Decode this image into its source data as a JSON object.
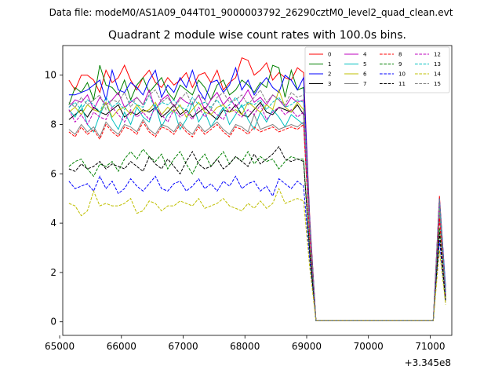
{
  "figure": {
    "suptitle": "Data file: modeM0/AS1A09_044T01_9000003792_26290cztM0_level2_quad_clean.evt"
  },
  "chart_data": {
    "type": "line",
    "title": "Quadrant 2 module wise count rates with 100.0s bins.",
    "xlabel": "",
    "ylabel": "",
    "x_offset_label": "+3.345e8",
    "xlim": [
      65050,
      71350
    ],
    "ylim": [
      -0.55,
      11.2
    ],
    "xticks": [
      65000,
      66000,
      67000,
      68000,
      69000,
      70000,
      71000
    ],
    "yticks": [
      0,
      2,
      4,
      6,
      8,
      10
    ],
    "x_start": 65150,
    "x_step": 100,
    "legend": {
      "placement": "top-right",
      "ncol": 4
    },
    "series": [
      {
        "name": "0",
        "color": "#ff0000",
        "dash": "solid",
        "values": [
          9.8,
          9.4,
          10.0,
          10.0,
          9.8,
          9.3,
          10.2,
          9.7,
          9.9,
          10.4,
          9.8,
          9.4,
          9.9,
          10.2,
          9.7,
          9.5,
          9.9,
          9.6,
          9.8,
          10.1,
          9.5,
          10.0,
          10.1,
          9.7,
          10.2,
          9.4,
          9.7,
          9.9,
          10.7,
          10.6,
          10.0,
          10.2,
          10.5,
          9.8,
          10.1,
          9.9,
          9.8,
          10.3,
          10.1,
          4.2,
          0.05,
          0.05,
          0.05,
          0.05,
          0.05,
          0.05,
          0.05,
          0.05,
          0.05,
          0.05,
          0.05,
          0.05,
          0.05,
          0.05,
          0.05,
          0.05,
          0.05,
          0.05,
          0.05,
          0.05,
          5.1,
          1.3
        ]
      },
      {
        "name": "1",
        "color": "#008000",
        "dash": "solid",
        "values": [
          8.8,
          9.5,
          9.3,
          9.7,
          9.0,
          10.4,
          9.6,
          9.5,
          9.2,
          9.8,
          9.0,
          9.6,
          9.9,
          9.3,
          9.6,
          9.9,
          9.3,
          9.0,
          9.6,
          9.4,
          9.2,
          9.8,
          9.5,
          9.0,
          9.6,
          9.8,
          9.2,
          9.4,
          9.8,
          9.6,
          9.3,
          9.7,
          9.5,
          10.4,
          10.3,
          9.1,
          10.2,
          9.4,
          9.5,
          4.0,
          0.05,
          0.05,
          0.05,
          0.05,
          0.05,
          0.05,
          0.05,
          0.05,
          0.05,
          0.05,
          0.05,
          0.05,
          0.05,
          0.05,
          0.05,
          0.05,
          0.05,
          0.05,
          0.05,
          0.05,
          4.8,
          1.2
        ]
      },
      {
        "name": "2",
        "color": "#0000ff",
        "dash": "solid",
        "values": [
          9.2,
          9.2,
          9.3,
          9.4,
          9.6,
          9.8,
          9.0,
          10.2,
          9.4,
          9.3,
          9.7,
          9.5,
          9.2,
          9.8,
          10.2,
          9.1,
          9.6,
          9.3,
          9.9,
          9.5,
          10.2,
          9.4,
          9.0,
          9.7,
          9.8,
          9.3,
          9.6,
          10.3,
          9.4,
          9.8,
          9.2,
          9.6,
          9.9,
          9.5,
          9.3,
          10.0,
          9.8,
          9.4,
          9.9,
          4.1,
          0.05,
          0.05,
          0.05,
          0.05,
          0.05,
          0.05,
          0.05,
          0.05,
          0.05,
          0.05,
          0.05,
          0.05,
          0.05,
          0.05,
          0.05,
          0.05,
          0.05,
          0.05,
          0.05,
          0.05,
          5.0,
          1.4
        ]
      },
      {
        "name": "3",
        "color": "#000000",
        "dash": "solid",
        "values": [
          8.2,
          8.4,
          8.6,
          8.3,
          8.7,
          8.5,
          8.4,
          8.6,
          8.8,
          8.3,
          8.5,
          8.4,
          8.6,
          8.5,
          8.7,
          8.3,
          8.5,
          8.8,
          8.4,
          8.6,
          8.3,
          8.5,
          8.7,
          8.4,
          8.2,
          8.6,
          8.5,
          8.8,
          8.4,
          8.3,
          8.6,
          8.9,
          8.5,
          8.4,
          8.7,
          8.6,
          8.5,
          8.8,
          8.4,
          3.6,
          0.05,
          0.05,
          0.05,
          0.05,
          0.05,
          0.05,
          0.05,
          0.05,
          0.05,
          0.05,
          0.05,
          0.05,
          0.05,
          0.05,
          0.05,
          0.05,
          0.05,
          0.05,
          0.05,
          0.05,
          4.5,
          1.1
        ]
      },
      {
        "name": "4",
        "color": "#bf00bf",
        "dash": "solid",
        "values": [
          8.7,
          9.0,
          8.9,
          9.2,
          8.6,
          9.1,
          8.8,
          9.0,
          9.3,
          8.7,
          8.9,
          9.1,
          8.8,
          9.4,
          8.6,
          9.0,
          9.2,
          8.7,
          9.1,
          8.9,
          8.8,
          9.2,
          8.6,
          9.0,
          9.3,
          8.8,
          9.1,
          8.7,
          9.0,
          9.4,
          8.9,
          9.1,
          8.8,
          9.2,
          9.0,
          8.7,
          9.1,
          8.9,
          9.0,
          3.9,
          0.05,
          0.05,
          0.05,
          0.05,
          0.05,
          0.05,
          0.05,
          0.05,
          0.05,
          0.05,
          0.05,
          0.05,
          0.05,
          0.05,
          0.05,
          0.05,
          0.05,
          0.05,
          0.05,
          0.05,
          4.7,
          1.2
        ]
      },
      {
        "name": "5",
        "color": "#00bfbf",
        "dash": "solid",
        "values": [
          8.6,
          8.3,
          8.8,
          8.0,
          7.7,
          8.4,
          8.9,
          8.2,
          7.8,
          8.5,
          8.0,
          8.7,
          8.3,
          8.1,
          8.8,
          7.9,
          8.4,
          8.6,
          7.8,
          8.2,
          8.9,
          8.1,
          8.5,
          7.9,
          8.3,
          8.7,
          8.0,
          8.4,
          8.8,
          8.2,
          7.8,
          8.5,
          8.1,
          8.6,
          8.3,
          7.9,
          8.4,
          8.2,
          8.0,
          3.7,
          0.05,
          0.05,
          0.05,
          0.05,
          0.05,
          0.05,
          0.05,
          0.05,
          0.05,
          0.05,
          0.05,
          0.05,
          0.05,
          0.05,
          0.05,
          0.05,
          0.05,
          0.05,
          0.05,
          0.05,
          4.6,
          1.1
        ]
      },
      {
        "name": "6",
        "color": "#bfbf00",
        "dash": "solid",
        "values": [
          8.5,
          8.7,
          8.4,
          8.8,
          8.6,
          8.5,
          8.9,
          8.3,
          8.6,
          8.7,
          8.4,
          8.8,
          8.5,
          8.6,
          8.9,
          8.4,
          8.7,
          8.5,
          8.8,
          8.3,
          8.6,
          8.9,
          8.5,
          8.4,
          8.7,
          8.8,
          8.5,
          8.6,
          8.4,
          8.9,
          8.7,
          8.5,
          8.8,
          8.6,
          9.4,
          8.7,
          8.5,
          8.9,
          8.6,
          3.8,
          0.05,
          0.05,
          0.05,
          0.05,
          0.05,
          0.05,
          0.05,
          0.05,
          0.05,
          0.05,
          0.05,
          0.05,
          0.05,
          0.05,
          0.05,
          0.05,
          0.05,
          0.05,
          0.05,
          0.05,
          4.7,
          1.0
        ]
      },
      {
        "name": "7",
        "color": "#808080",
        "dash": "solid",
        "values": [
          7.8,
          7.6,
          8.0,
          7.7,
          7.9,
          7.5,
          8.1,
          7.8,
          7.6,
          8.0,
          7.9,
          7.7,
          8.2,
          7.8,
          7.6,
          8.0,
          7.9,
          7.7,
          8.1,
          7.8,
          7.6,
          8.0,
          7.7,
          7.9,
          8.1,
          7.8,
          7.6,
          8.0,
          7.9,
          7.7,
          8.4,
          7.8,
          7.9,
          8.0,
          7.8,
          7.9,
          8.0,
          7.9,
          8.1,
          3.5,
          0.05,
          0.05,
          0.05,
          0.05,
          0.05,
          0.05,
          0.05,
          0.05,
          0.05,
          0.05,
          0.05,
          0.05,
          0.05,
          0.05,
          0.05,
          0.05,
          0.05,
          0.05,
          0.05,
          0.05,
          4.3,
          1.0
        ]
      },
      {
        "name": "8",
        "color": "#ff0000",
        "dash": "dashed",
        "values": [
          7.7,
          7.5,
          7.9,
          7.6,
          7.8,
          7.4,
          8.0,
          7.7,
          7.5,
          7.9,
          7.8,
          7.6,
          8.1,
          7.7,
          7.5,
          7.9,
          7.8,
          7.6,
          8.0,
          7.7,
          7.5,
          7.9,
          7.6,
          7.8,
          8.0,
          7.7,
          7.5,
          7.9,
          7.8,
          7.6,
          7.9,
          7.7,
          7.8,
          7.9,
          7.7,
          7.8,
          7.9,
          7.8,
          8.0,
          3.4,
          0.05,
          0.05,
          0.05,
          0.05,
          0.05,
          0.05,
          0.05,
          0.05,
          0.05,
          0.05,
          0.05,
          0.05,
          0.05,
          0.05,
          0.05,
          0.05,
          0.05,
          0.05,
          0.05,
          0.05,
          4.2,
          0.9
        ]
      },
      {
        "name": "9",
        "color": "#008000",
        "dash": "dashed",
        "values": [
          6.3,
          6.5,
          6.6,
          6.2,
          5.9,
          6.4,
          6.3,
          6.5,
          6.1,
          6.6,
          6.9,
          6.6,
          7.0,
          6.7,
          6.5,
          6.8,
          6.2,
          6.6,
          6.9,
          6.4,
          6.0,
          6.5,
          6.8,
          6.3,
          6.6,
          6.9,
          6.4,
          6.7,
          6.5,
          6.9,
          6.4,
          6.7,
          6.5,
          6.6,
          6.2,
          6.5,
          6.7,
          6.6,
          6.6,
          2.9,
          0.05,
          0.05,
          0.05,
          0.05,
          0.05,
          0.05,
          0.05,
          0.05,
          0.05,
          0.05,
          0.05,
          0.05,
          0.05,
          0.05,
          0.05,
          0.05,
          0.05,
          0.05,
          0.05,
          0.05,
          3.8,
          0.9
        ]
      },
      {
        "name": "10",
        "color": "#0000ff",
        "dash": "dashed",
        "values": [
          5.7,
          5.4,
          5.5,
          5.6,
          5.3,
          5.9,
          5.4,
          5.7,
          5.2,
          5.4,
          5.8,
          5.5,
          5.3,
          5.6,
          5.9,
          5.4,
          5.3,
          5.6,
          5.7,
          5.3,
          5.5,
          5.8,
          5.4,
          5.6,
          5.3,
          5.7,
          5.5,
          5.9,
          5.4,
          5.6,
          5.7,
          5.3,
          5.5,
          5.1,
          5.8,
          5.6,
          5.4,
          5.7,
          5.5,
          2.5,
          0.05,
          0.05,
          0.05,
          0.05,
          0.05,
          0.05,
          0.05,
          0.05,
          0.05,
          0.05,
          0.05,
          0.05,
          0.05,
          0.05,
          0.05,
          0.05,
          0.05,
          0.05,
          0.05,
          0.05,
          3.3,
          0.8
        ]
      },
      {
        "name": "11",
        "color": "#000000",
        "dash": "dashed",
        "values": [
          6.2,
          6.1,
          6.4,
          6.2,
          6.3,
          6.5,
          6.2,
          6.4,
          6.3,
          6.2,
          6.5,
          6.3,
          6.1,
          6.7,
          6.4,
          6.2,
          6.6,
          6.3,
          6.0,
          6.5,
          6.9,
          6.4,
          6.2,
          6.3,
          6.6,
          6.2,
          6.4,
          6.7,
          6.5,
          6.3,
          6.8,
          6.4,
          6.6,
          6.8,
          7.1,
          6.6,
          6.5,
          6.6,
          6.5,
          2.8,
          0.05,
          0.05,
          0.05,
          0.05,
          0.05,
          0.05,
          0.05,
          0.05,
          0.05,
          0.05,
          0.05,
          0.05,
          0.05,
          0.05,
          0.05,
          0.05,
          0.05,
          0.05,
          0.05,
          0.05,
          3.6,
          0.8
        ]
      },
      {
        "name": "12",
        "color": "#bf00bf",
        "dash": "dashed",
        "values": [
          8.6,
          8.1,
          8.4,
          8.0,
          8.5,
          8.3,
          8.2,
          8.7,
          8.4,
          8.1,
          8.6,
          8.3,
          8.5,
          8.2,
          8.7,
          8.4,
          8.1,
          8.6,
          8.3,
          8.5,
          8.2,
          8.7,
          8.3,
          8.6,
          8.4,
          8.2,
          8.7,
          8.5,
          8.3,
          8.6,
          8.4,
          8.8,
          8.2,
          8.5,
          8.7,
          8.4,
          8.6,
          8.3,
          8.5,
          3.7,
          0.05,
          0.05,
          0.05,
          0.05,
          0.05,
          0.05,
          0.05,
          0.05,
          0.05,
          0.05,
          0.05,
          0.05,
          0.05,
          0.05,
          0.05,
          0.05,
          0.05,
          0.05,
          0.05,
          0.05,
          4.8,
          1.1
        ]
      },
      {
        "name": "13",
        "color": "#00bfbf",
        "dash": "dashed",
        "values": [
          8.7,
          8.9,
          8.6,
          9.0,
          8.8,
          8.5,
          9.1,
          8.7,
          8.9,
          8.6,
          9.0,
          8.8,
          8.7,
          9.2,
          8.6,
          8.9,
          8.8,
          9.0,
          8.7,
          8.6,
          9.1,
          8.8,
          8.9,
          8.7,
          9.0,
          8.6,
          8.8,
          9.1,
          8.7,
          8.9,
          8.8,
          9.0,
          8.6,
          8.9,
          9.1,
          8.7,
          8.8,
          9.0,
          8.9,
          3.9,
          0.05,
          0.05,
          0.05,
          0.05,
          0.05,
          0.05,
          0.05,
          0.05,
          0.05,
          0.05,
          0.05,
          0.05,
          0.05,
          0.05,
          0.05,
          0.05,
          0.05,
          0.05,
          0.05,
          0.05,
          4.9,
          1.2
        ]
      },
      {
        "name": "14",
        "color": "#bfbf00",
        "dash": "dashed",
        "values": [
          4.8,
          4.7,
          4.3,
          4.5,
          5.3,
          4.7,
          4.8,
          4.7,
          4.7,
          4.8,
          5.0,
          4.4,
          4.5,
          4.9,
          4.8,
          4.5,
          4.7,
          4.7,
          4.9,
          4.8,
          4.7,
          5.0,
          4.6,
          4.7,
          4.8,
          5.0,
          4.7,
          4.6,
          4.5,
          4.8,
          4.6,
          4.9,
          4.6,
          4.8,
          5.4,
          4.8,
          4.9,
          5.0,
          4.9,
          2.2,
          0.05,
          0.05,
          0.05,
          0.05,
          0.05,
          0.05,
          0.05,
          0.05,
          0.05,
          0.05,
          0.05,
          0.05,
          0.05,
          0.05,
          0.05,
          0.05,
          0.05,
          0.05,
          0.05,
          0.05,
          2.9,
          0.7
        ]
      },
      {
        "name": "15",
        "color": "#808080",
        "dash": "dashed",
        "values": [
          8.9,
          8.7,
          9.1,
          8.8,
          9.0,
          9.2,
          8.6,
          9.0,
          8.9,
          9.3,
          8.7,
          9.1,
          8.8,
          9.2,
          9.4,
          8.9,
          9.1,
          8.7,
          9.0,
          9.3,
          8.8,
          9.2,
          9.0,
          8.6,
          9.1,
          9.3,
          8.9,
          9.0,
          9.2,
          8.8,
          9.1,
          9.4,
          8.9,
          9.2,
          9.0,
          8.8,
          9.3,
          9.1,
          9.2,
          4.0,
          0.05,
          0.05,
          0.05,
          0.05,
          0.05,
          0.05,
          0.05,
          0.05,
          0.05,
          0.05,
          0.05,
          0.05,
          0.05,
          0.05,
          0.05,
          0.05,
          0.05,
          0.05,
          0.05,
          0.05,
          5.0,
          1.3
        ]
      }
    ]
  }
}
